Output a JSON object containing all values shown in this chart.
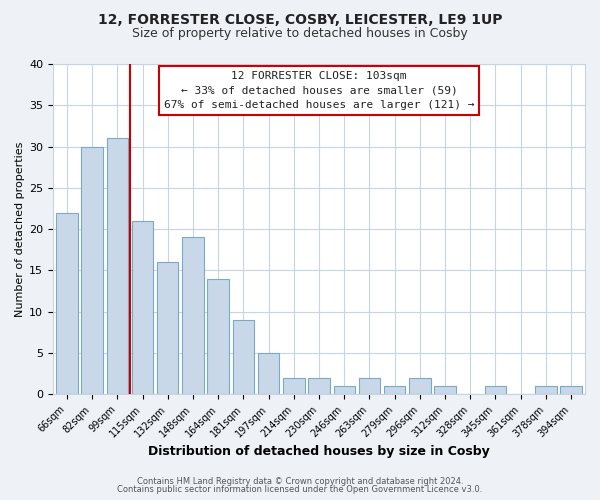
{
  "title": "12, FORRESTER CLOSE, COSBY, LEICESTER, LE9 1UP",
  "subtitle": "Size of property relative to detached houses in Cosby",
  "xlabel": "Distribution of detached houses by size in Cosby",
  "ylabel": "Number of detached properties",
  "bar_labels": [
    "66sqm",
    "82sqm",
    "99sqm",
    "115sqm",
    "132sqm",
    "148sqm",
    "164sqm",
    "181sqm",
    "197sqm",
    "214sqm",
    "230sqm",
    "246sqm",
    "263sqm",
    "279sqm",
    "296sqm",
    "312sqm",
    "328sqm",
    "345sqm",
    "361sqm",
    "378sqm",
    "394sqm"
  ],
  "bar_values": [
    22,
    30,
    31,
    21,
    16,
    19,
    14,
    9,
    5,
    2,
    2,
    1,
    2,
    1,
    2,
    1,
    0,
    1,
    0,
    1,
    1
  ],
  "bar_color": "#c8d8e8",
  "bar_edgecolor": "#7aaac8",
  "vline_x": 2.5,
  "vline_color": "#cc0000",
  "ylim": [
    0,
    40
  ],
  "annotation_box_text": "12 FORRESTER CLOSE: 103sqm\n← 33% of detached houses are smaller (59)\n67% of semi-detached houses are larger (121) →",
  "footer_line1": "Contains HM Land Registry data © Crown copyright and database right 2024.",
  "footer_line2": "Contains public sector information licensed under the Open Government Licence v3.0.",
  "background_color": "#eef2f7",
  "plot_background_color": "#ffffff",
  "grid_color": "#c8d4e0",
  "title_fontsize": 10,
  "subtitle_fontsize": 9,
  "ylabel_fontsize": 8,
  "xlabel_fontsize": 9,
  "annotation_fontsize": 8,
  "footer_fontsize": 6
}
